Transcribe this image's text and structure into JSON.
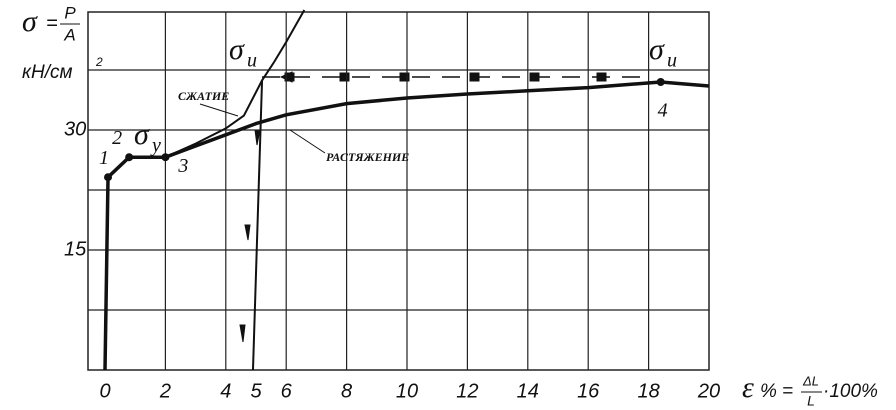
{
  "chart_data": {
    "type": "line",
    "xlim": [
      0,
      20
    ],
    "ylim": [
      0,
      45
    ],
    "xticks": [
      0,
      2,
      4,
      5,
      6,
      8,
      10,
      12,
      14,
      16,
      18,
      20
    ],
    "yticks": [
      15,
      30
    ],
    "xgrid": [
      2,
      4,
      6,
      8,
      10,
      12,
      14,
      16,
      18
    ],
    "ygrid": [
      7.5,
      15,
      22.5,
      30,
      37.5
    ],
    "y_label": {
      "symbol": "σ",
      "eq": "=",
      "num": "P",
      "den": "A",
      "unit": "кН/см",
      "unit_exp": "2"
    },
    "x_label": {
      "symbol": "ε",
      "pct": "%",
      "eq": "=",
      "num": "ΔL",
      "den": "L",
      "tail": "·100%"
    },
    "series": [
      {
        "name": "РАСТЯЖЕНИЕ",
        "color": "#111111",
        "x": [
          0,
          0.1,
          0.8,
          2,
          3,
          4,
          5,
          6,
          8,
          10,
          12,
          14,
          16,
          18.4,
          20
        ],
        "values": [
          0,
          24.1,
          26.6,
          26.6,
          28,
          29.4,
          30.8,
          31.9,
          33.3,
          34,
          34.5,
          34.9,
          35.3,
          36,
          35.5
        ]
      },
      {
        "name": "СЖАТИЕ",
        "color": "#111111",
        "x": [
          2,
          3,
          4,
          4.6,
          5.2,
          5.6,
          6,
          6.6
        ],
        "values": [
          26.6,
          28.3,
          30.2,
          31.8,
          36.2,
          38.5,
          41,
          45
        ]
      },
      {
        "color": "#111111",
        "x": [
          5.2,
          4.9
        ],
        "values": [
          36.2,
          0
        ]
      }
    ],
    "points": [
      {
        "label": "1",
        "x": 0.1,
        "y": 24.1
      },
      {
        "label": "2",
        "x": 0.8,
        "y": 26.6
      },
      {
        "label": "3",
        "x": 2,
        "y": 26.6
      },
      {
        "label": "4",
        "x": 18.4,
        "y": 36
      }
    ],
    "stress_labels": [
      {
        "symbol": "σ",
        "sub": "y"
      },
      {
        "symbol": "σ",
        "sub": "u"
      },
      {
        "symbol": "σ",
        "sub": "u"
      }
    ]
  }
}
